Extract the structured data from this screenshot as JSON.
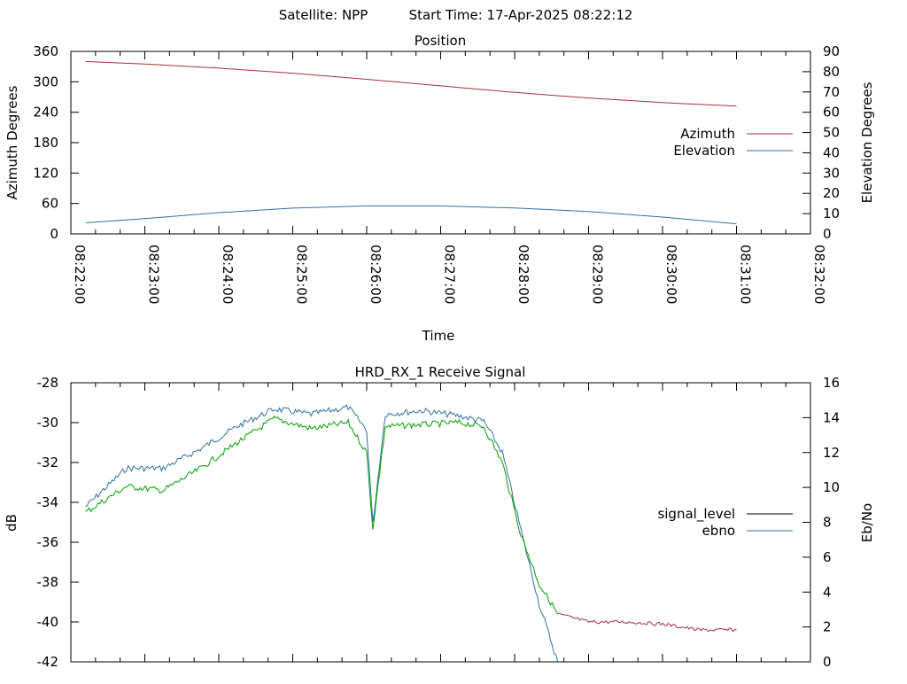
{
  "header": {
    "satellite": "Satellite: NPP",
    "start_time": "Start Time: 17-Apr-2025 08:22:12"
  },
  "colors": {
    "azimuth": "#a0323c",
    "elevation": "#326ea0",
    "signal_level_legend": "#000000",
    "signal_level_below_threshold": "#a0323c",
    "signal_level_main": "#00a000",
    "ebno": "#326ea0"
  },
  "chart_data": [
    {
      "type": "line",
      "title": "Position",
      "xlabel": "Time",
      "ylabel": "Azimuth Degrees",
      "y2label": "Elevation Degrees",
      "xlim": [
        "08:22:00",
        "08:32:00"
      ],
      "xticks": [
        "08:22:00",
        "08:23:00",
        "08:24:00",
        "08:25:00",
        "08:26:00",
        "08:27:00",
        "08:28:00",
        "08:29:00",
        "08:30:00",
        "08:31:00",
        "08:32:00"
      ],
      "ylim": [
        0,
        360
      ],
      "yticks": [
        "0",
        "60",
        "120",
        "180",
        "240",
        "300",
        "360"
      ],
      "y2lim": [
        0,
        90
      ],
      "y2ticks": [
        "0",
        "10",
        "20",
        "30",
        "40",
        "50",
        "60",
        "70",
        "80",
        "90"
      ],
      "grid": false,
      "legend": "right",
      "series": [
        {
          "name": "Azimuth",
          "axis": "y",
          "x": [
            "08:22:12",
            "08:23:00",
            "08:24:00",
            "08:25:00",
            "08:26:00",
            "08:27:00",
            "08:28:00",
            "08:29:00",
            "08:30:00",
            "08:31:00"
          ],
          "values": [
            340,
            335,
            327,
            317,
            305,
            292,
            279,
            268,
            259,
            252
          ]
        },
        {
          "name": "Elevation",
          "axis": "y2",
          "x": [
            "08:22:12",
            "08:23:00",
            "08:24:00",
            "08:25:00",
            "08:26:00",
            "08:27:00",
            "08:28:00",
            "08:29:00",
            "08:30:00",
            "08:31:00"
          ],
          "values": [
            5.5,
            7.5,
            10.5,
            12.7,
            13.8,
            13.8,
            12.8,
            11,
            8.3,
            5
          ]
        }
      ]
    },
    {
      "type": "line",
      "title": "HRD_RX_1 Receive Signal",
      "ylabel": "dB",
      "y2label": "Eb/No",
      "ylim": [
        -42,
        -28
      ],
      "yticks": [
        "-42",
        "-40",
        "-38",
        "-36",
        "-34",
        "-32",
        "-30",
        "-28"
      ],
      "y2lim": [
        0,
        16
      ],
      "y2ticks": [
        "0",
        "2",
        "4",
        "6",
        "8",
        "10",
        "12",
        "14",
        "16"
      ],
      "grid": false,
      "legend": "right",
      "series": [
        {
          "name": "signal_level",
          "axis": "y",
          "x": [
            "08:22:12",
            "08:22:45",
            "08:23:15",
            "08:23:45",
            "08:24:15",
            "08:24:45",
            "08:25:15",
            "08:25:45",
            "08:26:00",
            "08:26:05",
            "08:26:15",
            "08:26:45",
            "08:27:15",
            "08:27:35",
            "08:27:50",
            "08:28:05",
            "08:28:20",
            "08:28:35",
            "08:29:00",
            "08:29:30",
            "08:30:00",
            "08:30:30",
            "08:31:00"
          ],
          "values": [
            -34.5,
            -33.2,
            -33.4,
            -32.3,
            -31.0,
            -29.8,
            -30.3,
            -30.0,
            -31.5,
            -35.3,
            -30.2,
            -30.1,
            -30.0,
            -30.2,
            -32.0,
            -35.6,
            -38.1,
            -39.6,
            -40.0,
            -40.0,
            -40.1,
            -40.4,
            -40.4
          ]
        },
        {
          "name": "ebno",
          "axis": "y2",
          "x": [
            "08:22:12",
            "08:22:45",
            "08:23:15",
            "08:23:45",
            "08:24:15",
            "08:24:45",
            "08:25:15",
            "08:25:45",
            "08:26:00",
            "08:26:05",
            "08:26:15",
            "08:26:45",
            "08:27:15",
            "08:27:35",
            "08:27:50",
            "08:28:05",
            "08:28:20",
            "08:28:35"
          ],
          "values": [
            8.9,
            11.1,
            11.1,
            12.2,
            13.5,
            14.5,
            14.2,
            14.6,
            13.3,
            7.9,
            14.2,
            14.4,
            14.1,
            13.8,
            12.0,
            7.6,
            3.3,
            0
          ]
        }
      ]
    }
  ]
}
